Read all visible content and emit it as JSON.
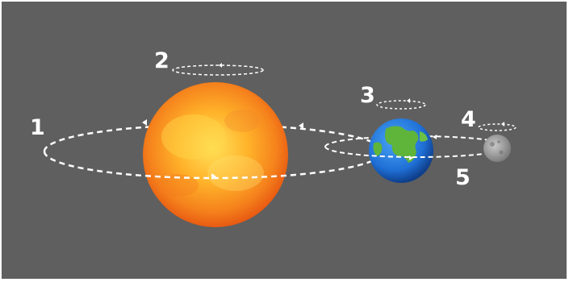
{
  "labels": {
    "one": "1",
    "two": "2",
    "three": "3",
    "four": "4",
    "five": "5"
  },
  "bodies": {
    "sun": "sun",
    "earth": "earth",
    "moon": "moon"
  },
  "colors": {
    "background": "#5f5f5f",
    "orbit": "#ffffff",
    "sun_core": "#ffd23a",
    "sun_edge": "#ef6a16",
    "ocean": "#1f6fd6",
    "land": "#5fb43a",
    "moon": "#9a9a9a"
  }
}
